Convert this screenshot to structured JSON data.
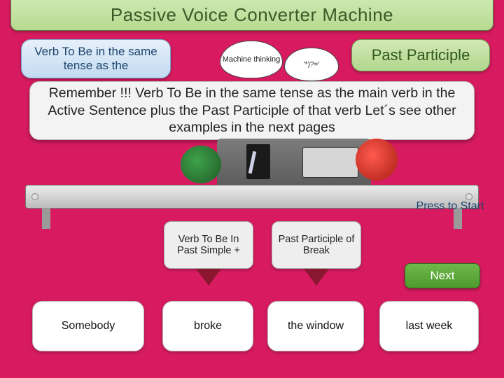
{
  "colors": {
    "stage_bg": "#d81b60",
    "title_bg_top": "#cde8b0",
    "title_bg_bot": "#b6da90",
    "title_text": "#3a5a28",
    "pill_blue_top": "#e6f0fa",
    "pill_blue_bot": "#c3dbf2",
    "pill_blue_text": "#1f456e",
    "pill_green_top": "#d2e8b5",
    "pill_green_bot": "#b2d78e",
    "arrow": "#8a1630",
    "next_top": "#6fb84a",
    "next_bot": "#4e9a2e"
  },
  "title": "Passive Voice Converter Machine",
  "pill_left": "Verb To Be in the same tense as the",
  "pill_right": "Past Participle",
  "bubble1": "Machine thinking",
  "bubble2": "'*)?='",
  "reminder": "Remember !!! Verb To Be in the same tense as the main verb in  the Active  Sentence plus the Past Participle of that verb Let´s see other examples in the next pages",
  "press_to_start": "Press to Start",
  "label_col2": "Verb To Be In Past Simple +",
  "label_col3": "Past Participle of Break",
  "next_label": "Next",
  "cards": {
    "c1": "Somebody",
    "c2": "broke",
    "c3": "the  window",
    "c4": "last week"
  }
}
